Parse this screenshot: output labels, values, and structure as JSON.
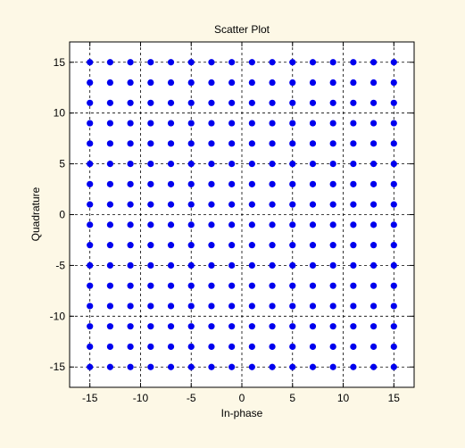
{
  "chart_data": {
    "type": "scatter",
    "title": "Scatter Plot",
    "xlabel": "In-phase",
    "ylabel": "Quadrature",
    "xlim": [
      -17,
      17
    ],
    "ylim": [
      -17,
      17
    ],
    "xticks": [
      -15,
      -10,
      -5,
      0,
      5,
      10,
      15
    ],
    "yticks": [
      -15,
      -10,
      -5,
      0,
      5,
      10,
      15
    ],
    "grid": true,
    "grid_style": "dashed",
    "constellation": "256-QAM",
    "levels": [
      -15,
      -13,
      -11,
      -9,
      -7,
      -5,
      -3,
      -1,
      1,
      3,
      5,
      7,
      9,
      11,
      13,
      15
    ],
    "marker_color": "#0000ee",
    "background_color": "#fdf8e6",
    "axes_color": "#ffffff"
  }
}
